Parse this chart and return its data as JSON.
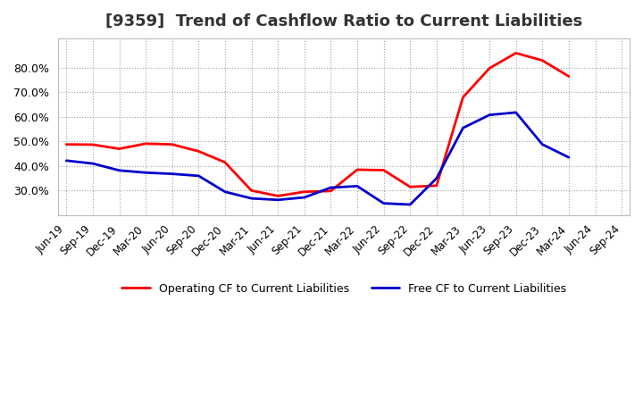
{
  "title": "[9359]  Trend of Cashflow Ratio to Current Liabilities",
  "x_labels": [
    "Jun-19",
    "Sep-19",
    "Dec-19",
    "Mar-20",
    "Jun-20",
    "Sep-20",
    "Dec-20",
    "Mar-21",
    "Jun-21",
    "Sep-21",
    "Dec-21",
    "Mar-22",
    "Jun-22",
    "Sep-22",
    "Dec-22",
    "Mar-23",
    "Jun-23",
    "Sep-23",
    "Dec-23",
    "Mar-24",
    "Jun-24",
    "Sep-24"
  ],
  "operating_cf": [
    0.488,
    0.487,
    0.47,
    0.491,
    0.488,
    0.46,
    0.415,
    0.3,
    0.278,
    0.295,
    0.298,
    0.385,
    0.383,
    0.315,
    0.32,
    0.68,
    0.798,
    0.86,
    0.83,
    0.765,
    null,
    null
  ],
  "free_cf": [
    0.422,
    0.41,
    0.382,
    0.373,
    0.368,
    0.36,
    0.295,
    0.268,
    0.262,
    0.272,
    0.312,
    0.318,
    0.248,
    0.243,
    0.35,
    0.555,
    0.608,
    0.618,
    0.488,
    0.435,
    null,
    null
  ],
  "operating_color": "#ff0000",
  "free_color": "#0000cc",
  "ylim_min": 0.2,
  "ylim_max": 0.92,
  "yticks": [
    0.3,
    0.4,
    0.5,
    0.6,
    0.7,
    0.8
  ],
  "background_color": "#ffffff",
  "plot_bg_color": "#ffffff",
  "grid_color": "#999999",
  "legend_op": "Operating CF to Current Liabilities",
  "legend_free": "Free CF to Current Liabilities",
  "title_fontsize": 13,
  "tick_fontsize": 8.5,
  "ylabel_fontsize": 9
}
